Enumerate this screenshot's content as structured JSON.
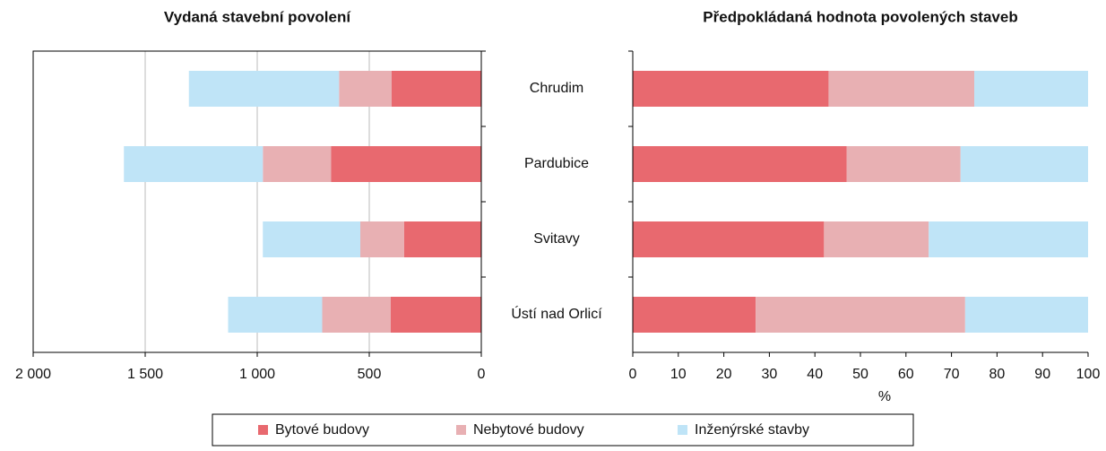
{
  "chart_data": [
    {
      "type": "hbar-stacked",
      "title": "Vydaná stavební povolení",
      "categories": [
        "Chrudim",
        "Pardubice",
        "Svitavy",
        "Ústí nad Orlicí"
      ],
      "series": [
        {
          "name": "Bytové budovy",
          "color": "#e8696f",
          "values": [
            400,
            670,
            345,
            405
          ]
        },
        {
          "name": "Nebytové budovy",
          "color": "#e8b0b3",
          "values": [
            235,
            305,
            195,
            305
          ]
        },
        {
          "name": "Inženýrské stavby",
          "color": "#bfe4f7",
          "values": [
            670,
            620,
            435,
            420
          ]
        }
      ],
      "xlim": [
        2000,
        0
      ],
      "xticks": [
        {
          "value": 2000,
          "label": "2 000"
        },
        {
          "value": 1500,
          "label": "1 500"
        },
        {
          "value": 1000,
          "label": "1 000"
        },
        500,
        0
      ],
      "grid": true
    },
    {
      "type": "hbar-stacked",
      "title": "Předpokládaná hodnota povolených staveb",
      "x_label": "%",
      "series": [
        {
          "values": [
            43,
            47,
            42,
            27
          ]
        },
        {
          "values": [
            32,
            25,
            23,
            46
          ]
        },
        {
          "values": [
            25,
            28,
            35,
            27
          ]
        }
      ],
      "xlim": [
        0,
        100
      ],
      "xticks": [
        0,
        10,
        20,
        30,
        40,
        50,
        60,
        70,
        80,
        90,
        100
      ],
      "grid": false
    }
  ]
}
